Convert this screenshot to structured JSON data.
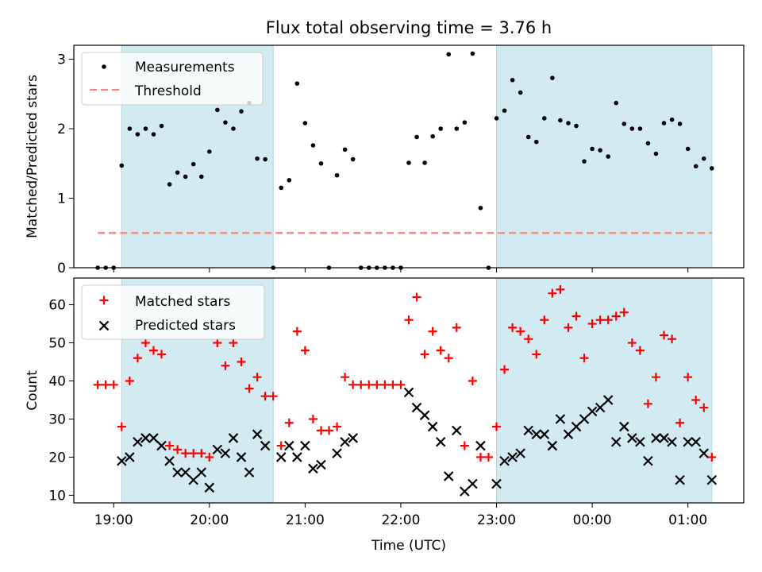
{
  "title": "Flux total observing time = 3.76 h",
  "colors": {
    "shade": "#add8e6",
    "measurement": "#000000",
    "threshold": "#ff7f7f",
    "matched": "#ff0000",
    "predicted": "#000000"
  },
  "chart_data": [
    {
      "type": "scatter",
      "ylabel": "Matched/Predicted stars",
      "ylim": [
        0,
        3.2
      ],
      "yticks": [
        "0",
        "1",
        "2",
        "3"
      ],
      "legend": {
        "placement": "top-left",
        "entries": [
          "Measurements",
          "Threshold"
        ]
      },
      "threshold": 0.5,
      "series": [
        {
          "name": "Measurements",
          "points": [
            [
              "18:50",
              0
            ],
            [
              "18:55",
              0
            ],
            [
              "19:00",
              0
            ],
            [
              "19:05",
              1.47
            ],
            [
              "19:10",
              2.0
            ],
            [
              "19:15",
              1.92
            ],
            [
              "19:20",
              2.0
            ],
            [
              "19:25",
              1.92
            ],
            [
              "19:30",
              2.04
            ],
            [
              "19:35",
              1.2
            ],
            [
              "19:40",
              1.37
            ],
            [
              "19:45",
              1.31
            ],
            [
              "19:50",
              1.49
            ],
            [
              "19:55",
              1.31
            ],
            [
              "20:00",
              1.67
            ],
            [
              "20:05",
              2.27
            ],
            [
              "20:10",
              2.09
            ],
            [
              "20:15",
              2.0
            ],
            [
              "20:20",
              2.25
            ],
            [
              "20:25",
              2.37
            ],
            [
              "20:30",
              1.57
            ],
            [
              "20:35",
              1.56
            ],
            [
              "20:40",
              0
            ],
            [
              "20:45",
              1.15
            ],
            [
              "20:50",
              1.26
            ],
            [
              "20:55",
              2.65
            ],
            [
              "21:00",
              2.08
            ],
            [
              "21:05",
              1.76
            ],
            [
              "21:10",
              1.5
            ],
            [
              "21:15",
              0
            ],
            [
              "21:20",
              1.33
            ],
            [
              "21:25",
              1.7
            ],
            [
              "21:30",
              1.56
            ],
            [
              "21:35",
              0
            ],
            [
              "21:40",
              0
            ],
            [
              "21:45",
              0
            ],
            [
              "21:50",
              0
            ],
            [
              "21:55",
              0
            ],
            [
              "22:00",
              0
            ],
            [
              "22:05",
              1.51
            ],
            [
              "22:10",
              1.88
            ],
            [
              "22:15",
              1.51
            ],
            [
              "22:20",
              1.89
            ],
            [
              "22:25",
              2.0
            ],
            [
              "22:30",
              3.07
            ],
            [
              "22:35",
              2.0
            ],
            [
              "22:40",
              2.09
            ],
            [
              "22:45",
              3.08
            ],
            [
              "22:50",
              0.86
            ],
            [
              "22:55",
              0
            ],
            [
              "23:00",
              2.15
            ],
            [
              "23:05",
              2.26
            ],
            [
              "23:10",
              2.7
            ],
            [
              "23:15",
              2.52
            ],
            [
              "23:20",
              1.88
            ],
            [
              "23:25",
              1.81
            ],
            [
              "23:30",
              2.15
            ],
            [
              "23:35",
              2.73
            ],
            [
              "23:40",
              2.12
            ],
            [
              "23:45",
              2.08
            ],
            [
              "23:50",
              2.04
            ],
            [
              "23:55",
              1.53
            ],
            [
              "00:00",
              1.71
            ],
            [
              "00:05",
              1.69
            ],
            [
              "00:10",
              1.6
            ],
            [
              "00:15",
              2.37
            ],
            [
              "00:20",
              2.07
            ],
            [
              "00:25",
              2.0
            ],
            [
              "00:30",
              2.0
            ],
            [
              "00:35",
              1.79
            ],
            [
              "00:40",
              1.64
            ],
            [
              "00:45",
              2.08
            ],
            [
              "00:50",
              2.13
            ],
            [
              "00:55",
              2.07
            ],
            [
              "01:00",
              1.71
            ],
            [
              "01:05",
              1.46
            ],
            [
              "01:10",
              1.57
            ],
            [
              "01:15",
              1.43
            ]
          ]
        }
      ]
    },
    {
      "type": "scatter",
      "xlabel": "Time (UTC)",
      "ylabel": "Count",
      "ylim": [
        8,
        67
      ],
      "yticks": [
        "10",
        "20",
        "30",
        "40",
        "50",
        "60"
      ],
      "xticks": [
        "19:00",
        "20:00",
        "21:00",
        "22:00",
        "23:00",
        "00:00",
        "01:00"
      ],
      "xlim": [
        "18:35",
        "01:35"
      ],
      "legend": {
        "placement": "top-left",
        "entries": [
          "Matched stars",
          "Predicted stars"
        ]
      },
      "series": [
        {
          "name": "Matched stars",
          "marker": "plus",
          "points": [
            [
              "18:50",
              39
            ],
            [
              "18:55",
              39
            ],
            [
              "19:00",
              39
            ],
            [
              "19:05",
              28
            ],
            [
              "19:10",
              40
            ],
            [
              "19:15",
              46
            ],
            [
              "19:20",
              50
            ],
            [
              "19:25",
              48
            ],
            [
              "19:30",
              47
            ],
            [
              "19:35",
              23
            ],
            [
              "19:40",
              22
            ],
            [
              "19:45",
              21
            ],
            [
              "19:50",
              21
            ],
            [
              "19:55",
              21
            ],
            [
              "20:00",
              20
            ],
            [
              "20:05",
              50
            ],
            [
              "20:10",
              44
            ],
            [
              "20:15",
              50
            ],
            [
              "20:20",
              45
            ],
            [
              "20:25",
              38
            ],
            [
              "20:30",
              41
            ],
            [
              "20:35",
              36
            ],
            [
              "20:40",
              36
            ],
            [
              "20:45",
              23
            ],
            [
              "20:50",
              29
            ],
            [
              "20:55",
              53
            ],
            [
              "21:00",
              48
            ],
            [
              "21:05",
              30
            ],
            [
              "21:10",
              27
            ],
            [
              "21:15",
              27
            ],
            [
              "21:20",
              28
            ],
            [
              "21:25",
              41
            ],
            [
              "21:30",
              39
            ],
            [
              "21:35",
              39
            ],
            [
              "21:40",
              39
            ],
            [
              "21:45",
              39
            ],
            [
              "21:50",
              39
            ],
            [
              "21:55",
              39
            ],
            [
              "22:00",
              39
            ],
            [
              "22:05",
              56
            ],
            [
              "22:10",
              62
            ],
            [
              "22:15",
              47
            ],
            [
              "22:20",
              53
            ],
            [
              "22:25",
              48
            ],
            [
              "22:30",
              46
            ],
            [
              "22:35",
              54
            ],
            [
              "22:40",
              23
            ],
            [
              "22:45",
              40
            ],
            [
              "22:50",
              20
            ],
            [
              "22:55",
              20
            ],
            [
              "23:00",
              28
            ],
            [
              "23:05",
              43
            ],
            [
              "23:10",
              54
            ],
            [
              "23:15",
              53
            ],
            [
              "23:20",
              51
            ],
            [
              "23:25",
              47
            ],
            [
              "23:30",
              56
            ],
            [
              "23:35",
              63
            ],
            [
              "23:40",
              64
            ],
            [
              "23:45",
              54
            ],
            [
              "23:50",
              57
            ],
            [
              "23:55",
              46
            ],
            [
              "00:00",
              55
            ],
            [
              "00:05",
              56
            ],
            [
              "00:10",
              56
            ],
            [
              "00:15",
              57
            ],
            [
              "00:20",
              58
            ],
            [
              "00:25",
              50
            ],
            [
              "00:30",
              48
            ],
            [
              "00:35",
              34
            ],
            [
              "00:40",
              41
            ],
            [
              "00:45",
              52
            ],
            [
              "00:50",
              51
            ],
            [
              "00:55",
              29
            ],
            [
              "01:00",
              41
            ],
            [
              "01:05",
              35
            ],
            [
              "01:10",
              33
            ],
            [
              "01:15",
              20
            ]
          ]
        },
        {
          "name": "Predicted stars",
          "marker": "x",
          "points": [
            [
              "19:05",
              19
            ],
            [
              "19:10",
              20
            ],
            [
              "19:15",
              24
            ],
            [
              "19:20",
              25
            ],
            [
              "19:25",
              25
            ],
            [
              "19:30",
              23
            ],
            [
              "19:35",
              19
            ],
            [
              "19:40",
              16
            ],
            [
              "19:45",
              16
            ],
            [
              "19:50",
              14
            ],
            [
              "19:55",
              16
            ],
            [
              "20:00",
              12
            ],
            [
              "20:05",
              22
            ],
            [
              "20:10",
              21
            ],
            [
              "20:15",
              25
            ],
            [
              "20:20",
              20
            ],
            [
              "20:25",
              16
            ],
            [
              "20:30",
              26
            ],
            [
              "20:35",
              23
            ],
            [
              "20:45",
              20
            ],
            [
              "20:50",
              23
            ],
            [
              "20:55",
              20
            ],
            [
              "21:00",
              23
            ],
            [
              "21:05",
              17
            ],
            [
              "21:10",
              18
            ],
            [
              "21:20",
              21
            ],
            [
              "21:25",
              24
            ],
            [
              "21:30",
              25
            ],
            [
              "22:05",
              37
            ],
            [
              "22:10",
              33
            ],
            [
              "22:15",
              31
            ],
            [
              "22:20",
              28
            ],
            [
              "22:25",
              24
            ],
            [
              "22:30",
              15
            ],
            [
              "22:35",
              27
            ],
            [
              "22:40",
              11
            ],
            [
              "22:45",
              13
            ],
            [
              "22:50",
              23
            ],
            [
              "23:00",
              13
            ],
            [
              "23:05",
              19
            ],
            [
              "23:10",
              20
            ],
            [
              "23:15",
              21
            ],
            [
              "23:20",
              27
            ],
            [
              "23:25",
              26
            ],
            [
              "23:30",
              26
            ],
            [
              "23:35",
              23
            ],
            [
              "23:40",
              30
            ],
            [
              "23:45",
              26
            ],
            [
              "23:50",
              28
            ],
            [
              "23:55",
              30
            ],
            [
              "00:00",
              32
            ],
            [
              "00:05",
              33
            ],
            [
              "00:10",
              35
            ],
            [
              "00:15",
              24
            ],
            [
              "00:20",
              28
            ],
            [
              "00:25",
              25
            ],
            [
              "00:30",
              24
            ],
            [
              "00:35",
              19
            ],
            [
              "00:40",
              25
            ],
            [
              "00:45",
              25
            ],
            [
              "00:50",
              24
            ],
            [
              "00:55",
              14
            ],
            [
              "01:00",
              24
            ],
            [
              "01:05",
              24
            ],
            [
              "01:10",
              21
            ],
            [
              "01:15",
              14
            ]
          ]
        }
      ]
    }
  ],
  "shaded_intervals": [
    [
      "19:05",
      "20:40"
    ],
    [
      "23:00",
      "01:15"
    ]
  ]
}
